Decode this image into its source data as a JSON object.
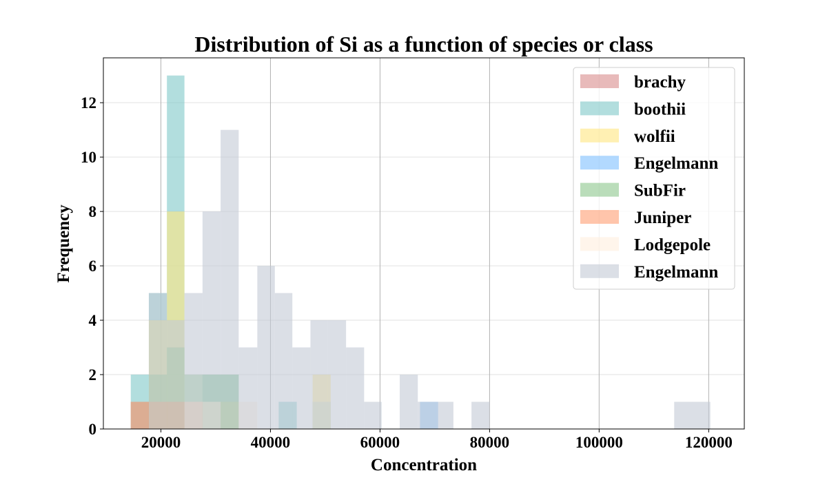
{
  "chart_data": {
    "type": "histogram",
    "title": "Distribution of Si as a function of species or class",
    "xlabel": "Concentration",
    "ylabel": "Frequency",
    "xlim": [
      9500,
      126500
    ],
    "ylim": [
      0,
      13.65
    ],
    "xticks": [
      20000,
      40000,
      60000,
      80000,
      100000,
      120000
    ],
    "yticks": [
      0,
      2,
      4,
      6,
      8,
      10,
      12
    ],
    "grid": "both",
    "legend_position": "upper right",
    "series": [
      {
        "name": "brachy",
        "color": "#d98c8c",
        "opacity": 0.6,
        "bins": [
          [
            14500,
            17800,
            1
          ],
          [
            17800,
            21100,
            1
          ],
          [
            21100,
            24300,
            1
          ],
          [
            24300,
            27600,
            1
          ]
        ]
      },
      {
        "name": "boothii",
        "color": "#7ec8c8",
        "opacity": 0.6,
        "bins": [
          [
            14500,
            17800,
            2
          ],
          [
            17800,
            21100,
            5
          ],
          [
            21100,
            24300,
            13
          ],
          [
            24300,
            27600,
            1
          ],
          [
            27600,
            30900,
            2
          ],
          [
            30900,
            34200,
            2
          ],
          [
            41500,
            44800,
            1
          ]
        ]
      },
      {
        "name": "wolfii",
        "color": "#ffe680",
        "opacity": 0.6,
        "bins": [
          [
            17800,
            21100,
            4
          ],
          [
            21100,
            24300,
            8
          ],
          [
            24300,
            27600,
            1
          ],
          [
            27600,
            30900,
            1
          ],
          [
            30900,
            34200,
            1
          ],
          [
            47700,
            51000,
            2
          ]
        ]
      },
      {
        "name": "Engelmann",
        "color": "#7fbfff",
        "opacity": 0.6,
        "bins": [
          [
            67300,
            70600,
            1
          ]
        ]
      },
      {
        "name": "SubFir",
        "color": "#8cc68c",
        "opacity": 0.6,
        "bins": [
          [
            17800,
            21100,
            2
          ],
          [
            21100,
            24300,
            3
          ],
          [
            24300,
            27600,
            2
          ],
          [
            27600,
            30900,
            2
          ],
          [
            30900,
            34200,
            2
          ],
          [
            47700,
            51000,
            1
          ]
        ]
      },
      {
        "name": "Juniper",
        "color": "#ff9f73",
        "opacity": 0.6,
        "bins": [
          [
            14500,
            17800,
            1
          ],
          [
            17800,
            21100,
            1
          ],
          [
            21100,
            24300,
            1
          ],
          [
            24300,
            27600,
            1
          ]
        ]
      },
      {
        "name": "Lodgepole",
        "color": "#ffeedd",
        "opacity": 0.6,
        "bins": [
          [
            24300,
            27600,
            1
          ],
          [
            27600,
            30900,
            1
          ],
          [
            34200,
            37600,
            1
          ],
          [
            47700,
            51000,
            1
          ]
        ]
      },
      {
        "name": "Engelmann",
        "color": "#c3cad6",
        "opacity": 0.6,
        "bins": [
          [
            17800,
            21100,
            5
          ],
          [
            21100,
            24300,
            4
          ],
          [
            24300,
            27600,
            5
          ],
          [
            27600,
            30900,
            8
          ],
          [
            30900,
            34200,
            11
          ],
          [
            34200,
            37600,
            3
          ],
          [
            37600,
            40800,
            6
          ],
          [
            40800,
            44000,
            5
          ],
          [
            44000,
            47300,
            3
          ],
          [
            47300,
            50500,
            4
          ],
          [
            50500,
            53800,
            4
          ],
          [
            53800,
            57100,
            3
          ],
          [
            57100,
            60300,
            1
          ],
          [
            60300,
            63600,
            0
          ],
          [
            63600,
            66900,
            2
          ],
          [
            66900,
            70100,
            1
          ],
          [
            70100,
            73400,
            1
          ],
          [
            73400,
            76700,
            0
          ],
          [
            76700,
            80000,
            1
          ],
          [
            113700,
            117000,
            1
          ],
          [
            117000,
            120300,
            1
          ]
        ]
      }
    ]
  }
}
